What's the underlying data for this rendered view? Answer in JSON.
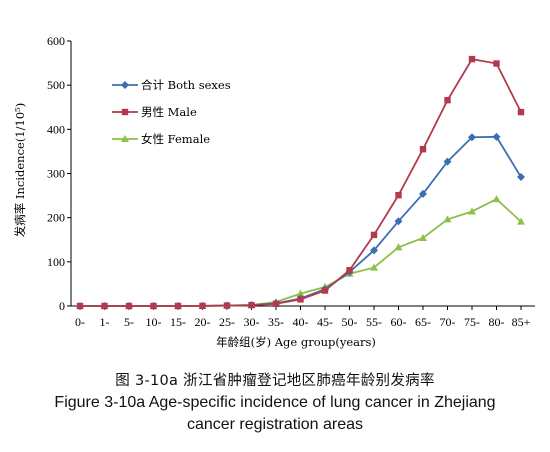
{
  "chart_data": {
    "type": "line",
    "categories": [
      "0-",
      "1-",
      "5-",
      "10-",
      "15-",
      "20-",
      "25-",
      "30-",
      "35-",
      "40-",
      "45-",
      "50-",
      "55-",
      "60-",
      "65-",
      "70-",
      "75-",
      "80-",
      "85+"
    ],
    "series": [
      {
        "name": "合计 Both sexes",
        "color": "#3a6fb3",
        "marker": "diamond",
        "values": [
          0,
          0,
          0,
          0,
          0,
          0.3,
          1,
          2,
          6,
          17,
          38,
          77,
          126,
          192,
          254,
          327,
          382,
          383,
          292
        ]
      },
      {
        "name": "男性 Male",
        "color": "#b5394d",
        "marker": "square",
        "values": [
          0,
          0,
          0,
          0,
          0,
          0.3,
          1,
          2,
          5,
          15,
          35,
          81,
          161,
          251,
          355,
          466,
          559,
          549,
          439
        ]
      },
      {
        "name": "女性 Female",
        "color": "#8cc04a",
        "marker": "triangle",
        "values": [
          0,
          0,
          0,
          0,
          0,
          0.3,
          1,
          2,
          9,
          28,
          43,
          73,
          87,
          133,
          154,
          196,
          214,
          242,
          191
        ]
      }
    ],
    "ylabel": "发病率 Incidence(1/10⁵)",
    "xlabel": "年龄组(岁) Age group(years)",
    "ylim": [
      0,
      600
    ],
    "yticks": [
      0,
      100,
      200,
      300,
      400,
      500,
      600
    ],
    "grid": false,
    "legend_position": "top-left"
  },
  "caption": {
    "cn": "图 3-10a   浙江省肿瘤登记地区肺癌年龄别发病率",
    "en_line1": "Figure 3-10a    Age-specific incidence of lung cancer in Zhejiang",
    "en_line2": "cancer registration areas"
  }
}
